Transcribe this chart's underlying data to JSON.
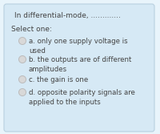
{
  "bg_color": "#d6e9f5",
  "outer_bg": "#e8f4fb",
  "title": "In differential-mode, .............",
  "select_one": "Select one:",
  "options": [
    "a. only one supply voltage is\nused",
    "b. the outputs are of different\namplitudes",
    "c. the gain is one",
    "d. opposite polarity signals are\napplied to the inputs"
  ],
  "title_fontsize": 6.5,
  "option_fontsize": 6.2,
  "select_fontsize": 6.5,
  "text_color": "#444444",
  "circle_fill": "#d8d8d8",
  "circle_edge": "#bbbbbb",
  "inner_edge": "#b8d0e0"
}
